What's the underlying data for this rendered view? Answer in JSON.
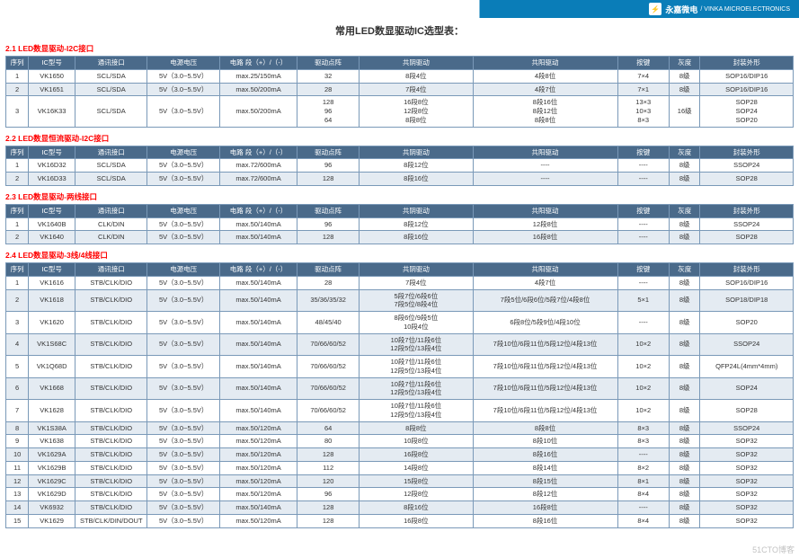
{
  "header": {
    "company_cn": "永嘉微电",
    "company_en": "/ VINKA MICROELECTRONICS"
  },
  "main_title": "常用LED数显驱动IC选型表：",
  "columns": [
    "序列",
    "IC型号",
    "通讯接口",
    "电源电压",
    "电路 段（+）/（-）",
    "驱动点阵",
    "共阴驱动",
    "共阳驱动",
    "按键",
    "灰度",
    "封装外形"
  ],
  "colwidths": [
    "22px",
    "45px",
    "70px",
    "70px",
    "75px",
    "60px",
    "110px",
    "140px",
    "50px",
    "30px",
    "90px"
  ],
  "sections": [
    {
      "title": "2.1 LED数显驱动-I2C接口",
      "rows": [
        {
          "cls": "a",
          "c": [
            "1",
            "VK1650",
            "SCL/SDA",
            "5V（3.0~5.5V）",
            "max.25/150mA",
            "32",
            "8段4位",
            "4段8位",
            "7×4",
            "8级",
            "SOP16/DIP16"
          ]
        },
        {
          "cls": "b",
          "c": [
            "2",
            "VK1651",
            "SCL/SDA",
            "5V（3.0~5.5V）",
            "max.50/200mA",
            "28",
            "7段4位",
            "4段7位",
            "7×1",
            "8级",
            "SOP16/DIP16"
          ]
        },
        {
          "cls": "a",
          "c": [
            "3",
            "VK16K33",
            "SCL/SDA",
            "5V（3.0~5.5V）",
            "max.50/200mA",
            "128\n96\n64",
            "16段8位\n12段8位\n8段8位",
            "8段16位\n8段12位\n8段8位",
            "13×3\n10×3\n8×3",
            "16级",
            "SOP28\nSOP24\nSOP20"
          ]
        }
      ]
    },
    {
      "title": "2.2 LED数显恒流驱动-I2C接口",
      "rows": [
        {
          "cls": "a",
          "c": [
            "1",
            "VK16D32",
            "SCL/SDA",
            "5V（3.0~5.5V）",
            "max.72/600mA",
            "96",
            "8段12位",
            "----",
            "----",
            "8级",
            "SSOP24"
          ]
        },
        {
          "cls": "b",
          "c": [
            "2",
            "VK16D33",
            "SCL/SDA",
            "5V（3.0~5.5V）",
            "max.72/600mA",
            "128",
            "8段16位",
            "----",
            "----",
            "8级",
            "SOP28"
          ]
        }
      ]
    },
    {
      "title": "2.3 LED数显驱动-两线接口",
      "rows": [
        {
          "cls": "a",
          "c": [
            "1",
            "VK1640B",
            "CLK/DIN",
            "5V（3.0~5.5V）",
            "max.50/140mA",
            "96",
            "8段12位",
            "12段8位",
            "----",
            "8级",
            "SSOP24"
          ]
        },
        {
          "cls": "b",
          "c": [
            "2",
            "VK1640",
            "CLK/DIN",
            "5V（3.0~5.5V）",
            "max.50/140mA",
            "128",
            "8段16位",
            "16段8位",
            "----",
            "8级",
            "SOP28"
          ]
        }
      ]
    },
    {
      "title": "2.4 LED数显驱动-3线/4线接口",
      "rows": [
        {
          "cls": "a",
          "c": [
            "1",
            "VK1616",
            "STB/CLK/DIO",
            "5V（3.0~5.5V）",
            "max.50/140mA",
            "28",
            "7段4位",
            "4段7位",
            "----",
            "8级",
            "SOP16/DIP16"
          ]
        },
        {
          "cls": "b",
          "c": [
            "2",
            "VK1618",
            "STB/CLK/DIO",
            "5V（3.0~5.5V）",
            "max.50/140mA",
            "35/36/35/32",
            "5段7位/6段6位\n7段5位/8段4位",
            "7段5位/6段6位/5段7位/4段8位",
            "5×1",
            "8级",
            "SOP18/DIP18"
          ]
        },
        {
          "cls": "a",
          "c": [
            "3",
            "VK1620",
            "STB/CLK/DIO",
            "5V（3.0~5.5V）",
            "max.50/140mA",
            "48/45/40",
            "8段6位/9段5位\n10段4位",
            "6段8位/5段9位/4段10位",
            "----",
            "8级",
            "SOP20"
          ]
        },
        {
          "cls": "b",
          "c": [
            "4",
            "VK1S68C",
            "STB/CLK/DIO",
            "5V（3.0~5.5V）",
            "max.50/140mA",
            "70/66/60/52",
            "10段7位/11段6位\n12段5位/13段4位",
            "7段10位/6段11位/5段12位/4段13位",
            "10×2",
            "8级",
            "SSOP24"
          ]
        },
        {
          "cls": "a",
          "c": [
            "5",
            "VK1Q68D",
            "STB/CLK/DIO",
            "5V（3.0~5.5V）",
            "max.50/140mA",
            "70/66/60/52",
            "10段7位/11段6位\n12段5位/13段4位",
            "7段10位/6段11位/5段12位/4段13位",
            "10×2",
            "8级",
            "QFP24L(4mm*4mm)"
          ]
        },
        {
          "cls": "b",
          "c": [
            "6",
            "VK1668",
            "STB/CLK/DIO",
            "5V（3.0~5.5V）",
            "max.50/140mA",
            "70/66/60/52",
            "10段7位/11段6位\n12段5位/13段4位",
            "7段10位/6段11位/5段12位/4段13位",
            "10×2",
            "8级",
            "SOP24"
          ]
        },
        {
          "cls": "a",
          "c": [
            "7",
            "VK1628",
            "STB/CLK/DIO",
            "5V（3.0~5.5V）",
            "max.50/140mA",
            "70/66/60/52",
            "10段7位/11段6位\n12段5位/13段4位",
            "7段10位/6段11位/5段12位/4段13位",
            "10×2",
            "8级",
            "SOP28"
          ]
        },
        {
          "cls": "b",
          "c": [
            "8",
            "VK1S38A",
            "STB/CLK/DIO",
            "5V（3.0~5.5V）",
            "max.50/120mA",
            "64",
            "8段8位",
            "8段8位",
            "8×3",
            "8级",
            "SSOP24"
          ]
        },
        {
          "cls": "a",
          "c": [
            "9",
            "VK1638",
            "STB/CLK/DIO",
            "5V（3.0~5.5V）",
            "max.50/120mA",
            "80",
            "10段8位",
            "8段10位",
            "8×3",
            "8级",
            "SOP32"
          ]
        },
        {
          "cls": "b",
          "c": [
            "10",
            "VK1629A",
            "STB/CLK/DIO",
            "5V（3.0~5.5V）",
            "max.50/120mA",
            "128",
            "16段8位",
            "8段16位",
            "----",
            "8级",
            "SOP32"
          ]
        },
        {
          "cls": "a",
          "c": [
            "11",
            "VK1629B",
            "STB/CLK/DIO",
            "5V（3.0~5.5V）",
            "max.50/120mA",
            "112",
            "14段8位",
            "8段14位",
            "8×2",
            "8级",
            "SOP32"
          ]
        },
        {
          "cls": "b",
          "c": [
            "12",
            "VK1629C",
            "STB/CLK/DIO",
            "5V（3.0~5.5V）",
            "max.50/120mA",
            "120",
            "15段8位",
            "8段15位",
            "8×1",
            "8级",
            "SOP32"
          ]
        },
        {
          "cls": "a",
          "c": [
            "13",
            "VK1629D",
            "STB/CLK/DIO",
            "5V（3.0~5.5V）",
            "max.50/120mA",
            "96",
            "12段8位",
            "8段12位",
            "8×4",
            "8级",
            "SOP32"
          ]
        },
        {
          "cls": "b",
          "c": [
            "14",
            "VK6932",
            "STB/CLK/DIO",
            "5V（3.0~5.5V）",
            "max.50/140mA",
            "128",
            "8段16位",
            "16段8位",
            "----",
            "8级",
            "SOP32"
          ]
        },
        {
          "cls": "a",
          "c": [
            "15",
            "VK1629",
            "STB/CLK/DIN/DOUT",
            "5V（3.0~5.5V）",
            "max.50/120mA",
            "128",
            "16段8位",
            "8段16位",
            "8×4",
            "8级",
            "SOP32"
          ]
        }
      ]
    }
  ],
  "watermark": "51CTO博客"
}
